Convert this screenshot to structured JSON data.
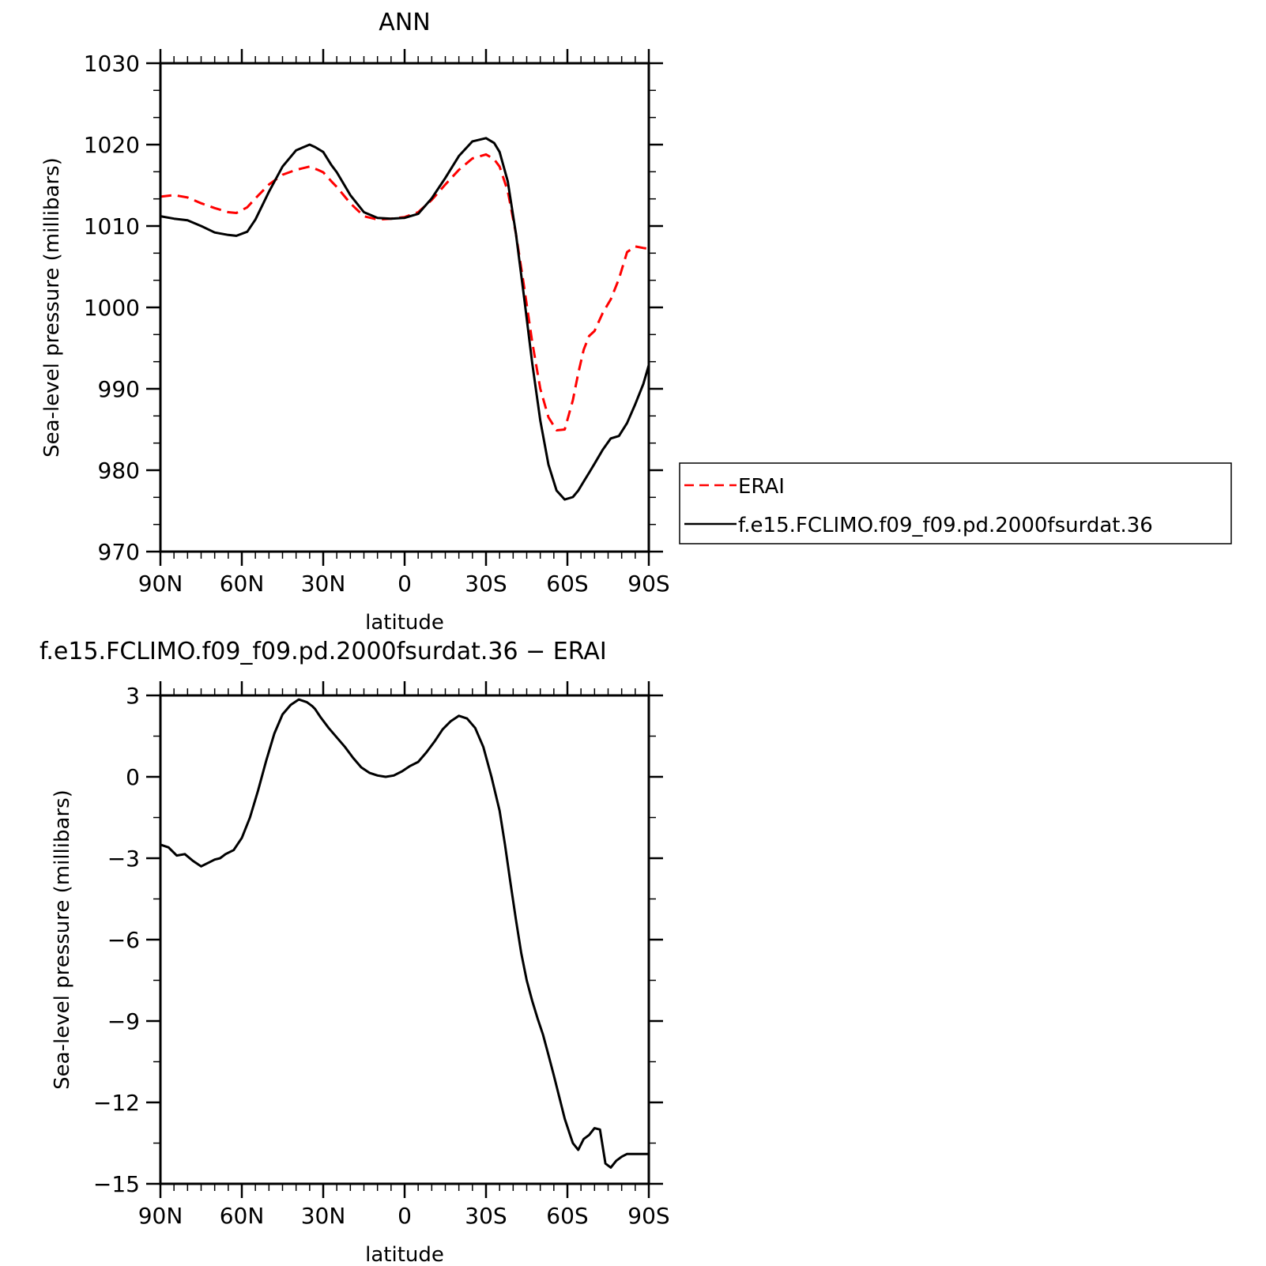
{
  "chart_data": [
    {
      "type": "line",
      "title": "ANN",
      "xlabel": "latitude",
      "ylabel": "Sea-level pressure (millibars)",
      "xlim": [
        90,
        -90
      ],
      "ylim": [
        970,
        1030
      ],
      "xticks": [
        90,
        60,
        30,
        0,
        -30,
        -60,
        -90
      ],
      "xtick_labels": [
        "90N",
        "60N",
        "30N",
        "0",
        "30S",
        "60S",
        "90S"
      ],
      "yticks": [
        970,
        980,
        990,
        1000,
        1010,
        1020,
        1030
      ],
      "ytick_labels": [
        "970",
        "980",
        "990",
        "1000",
        "1010",
        "1020",
        "1030"
      ],
      "legend": {
        "placement": "outside-right"
      },
      "grid": false,
      "series": [
        {
          "name": "ERAI",
          "color": "#ff0000",
          "dash": "dashed",
          "x": [
            90,
            85,
            80,
            75,
            70,
            65,
            62,
            58,
            55,
            50,
            45,
            40,
            35,
            32,
            30,
            27,
            25,
            20,
            15,
            10,
            5,
            0,
            -5,
            -10,
            -15,
            -20,
            -25,
            -30,
            -33,
            -35,
            -38,
            -41,
            -44,
            -47,
            -50,
            -53,
            -56,
            -59,
            -62,
            -64,
            -66,
            -68,
            -70,
            -73,
            -76,
            -79,
            -82,
            -85,
            -88,
            -90
          ],
          "y": [
            1013.6,
            1013.8,
            1013.5,
            1012.8,
            1012.2,
            1011.7,
            1011.6,
            1012.3,
            1013.4,
            1015.1,
            1016.3,
            1016.9,
            1017.3,
            1016.9,
            1016.6,
            1015.5,
            1014.8,
            1012.8,
            1011.2,
            1010.8,
            1010.9,
            1011.1,
            1011.7,
            1013.2,
            1015.1,
            1016.9,
            1018.3,
            1018.8,
            1018.2,
            1017.3,
            1014.3,
            1009.1,
            1002.6,
            995.8,
            990.0,
            986.5,
            984.9,
            985.0,
            988.6,
            991.9,
            994.8,
            996.5,
            997.1,
            999.3,
            1001.0,
            1003.5,
            1006.8,
            1007.5,
            1007.3,
            1007.2
          ]
        },
        {
          "name": "f.e15.FCLIMO.f09_f09.pd.2000fsurdat.36",
          "color": "#000000",
          "dash": "solid",
          "x": [
            90,
            85,
            80,
            75,
            70,
            65,
            62,
            58,
            55,
            50,
            45,
            40,
            35,
            33,
            30,
            27,
            25,
            20,
            15,
            10,
            5,
            0,
            -5,
            -10,
            -15,
            -20,
            -25,
            -30,
            -33,
            -35,
            -38,
            -41,
            -44,
            -47,
            -50,
            -53,
            -56,
            -59,
            -62,
            -64,
            -66,
            -68,
            -70,
            -73,
            -76,
            -79,
            -82,
            -85,
            -88,
            -90
          ],
          "y": [
            1011.2,
            1010.9,
            1010.7,
            1010.0,
            1009.2,
            1008.9,
            1008.8,
            1009.3,
            1010.8,
            1014.2,
            1017.3,
            1019.3,
            1020.0,
            1019.7,
            1019.1,
            1017.5,
            1016.6,
            1013.8,
            1011.7,
            1011.0,
            1010.9,
            1011.0,
            1011.5,
            1013.4,
            1015.9,
            1018.6,
            1020.4,
            1020.8,
            1020.2,
            1019.1,
            1015.5,
            1009.1,
            1001.3,
            993.2,
            986.1,
            980.7,
            977.5,
            976.4,
            976.7,
            977.5,
            978.6,
            979.7,
            980.8,
            982.5,
            983.9,
            984.2,
            985.8,
            988.1,
            990.6,
            992.9
          ]
        }
      ]
    },
    {
      "type": "line",
      "title": "f.e15.FCLIMO.f09_f09.pd.2000fsurdat.36 − ERAI",
      "xlabel": "latitude",
      "ylabel": "Sea-level pressure (millibars)",
      "xlim": [
        90,
        -90
      ],
      "ylim": [
        -15,
        3
      ],
      "xticks": [
        90,
        60,
        30,
        0,
        -30,
        -60,
        -90
      ],
      "xtick_labels": [
        "90N",
        "60N",
        "30N",
        "0",
        "30S",
        "60S",
        "90S"
      ],
      "yticks": [
        -15,
        -12,
        -9,
        -6,
        -3,
        0,
        3
      ],
      "ytick_labels": [
        "−15",
        "−12",
        "−9",
        "−6",
        "−3",
        "0",
        "3"
      ],
      "grid": false,
      "series": [
        {
          "color": "#000000",
          "dash": "solid",
          "x": [
            90,
            87,
            84,
            81,
            78,
            75,
            72,
            70,
            68,
            66,
            63,
            60,
            57,
            54,
            51,
            48,
            45,
            42,
            39,
            36,
            34,
            33,
            31,
            28,
            25,
            22,
            19,
            16,
            13,
            10,
            7,
            4,
            1,
            -2,
            -5,
            -8,
            -11,
            -14,
            -17,
            -20,
            -23,
            -26,
            -29,
            -32,
            -35,
            -37,
            -39,
            -41,
            -43,
            -45,
            -47,
            -49,
            -51,
            -53,
            -55,
            -57,
            -59,
            -61,
            -62,
            -64,
            -66,
            -68,
            -70,
            -72,
            -74,
            -76,
            -78,
            -80,
            -82,
            -84,
            -86,
            -88,
            -89,
            -90
          ],
          "y": [
            -2.5,
            -2.6,
            -2.9,
            -2.85,
            -3.1,
            -3.3,
            -3.15,
            -3.05,
            -3.0,
            -2.85,
            -2.7,
            -2.25,
            -1.5,
            -0.5,
            0.6,
            1.6,
            2.3,
            2.65,
            2.85,
            2.75,
            2.6,
            2.5,
            2.2,
            1.8,
            1.45,
            1.1,
            0.7,
            0.35,
            0.15,
            0.05,
            0.0,
            0.05,
            0.2,
            0.4,
            0.55,
            0.9,
            1.3,
            1.75,
            2.05,
            2.25,
            2.15,
            1.8,
            1.1,
            0.0,
            -1.25,
            -2.5,
            -3.9,
            -5.25,
            -6.5,
            -7.5,
            -8.25,
            -8.9,
            -9.5,
            -10.25,
            -11.0,
            -11.8,
            -12.6,
            -13.2,
            -13.5,
            -13.75,
            -13.35,
            -13.2,
            -12.95,
            -13.0,
            -14.25,
            -14.4,
            -14.15,
            -14.0,
            -13.9,
            -13.9,
            -13.9,
            -13.9,
            -13.9,
            -13.9
          ]
        }
      ]
    }
  ]
}
